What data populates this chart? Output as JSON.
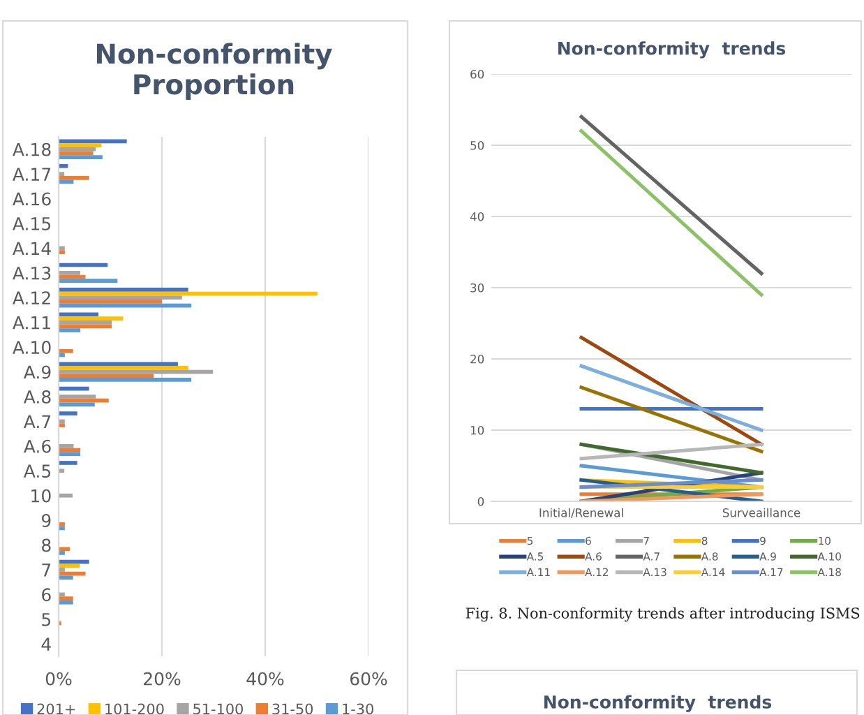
{
  "chart_data": [
    {
      "type": "bar",
      "orientation": "horizontal",
      "title": "Non-conformity\nProportion",
      "categories": [
        "A.18",
        "A.17",
        "A.16",
        "A.15",
        "A.14",
        "A.13",
        "A.12",
        "A.11",
        "A.10",
        "A.9",
        "A.8",
        "A.7",
        "A.6",
        "A.5",
        "10",
        "9",
        "8",
        "7",
        "6",
        "5",
        "4"
      ],
      "series": [
        {
          "name": "201+",
          "color": "#4472c4",
          "values": [
            13.2,
            1.8,
            0,
            0,
            0,
            9.5,
            25.1,
            7.7,
            0,
            23.1,
            5.9,
            3.6,
            0,
            3.6,
            0,
            0,
            0,
            5.9,
            0,
            0,
            0
          ]
        },
        {
          "name": "101-200",
          "color": "#ffc000",
          "values": [
            8.3,
            0,
            0,
            0,
            0,
            0,
            50.1,
            12.5,
            0,
            25.1,
            0,
            0,
            0,
            0,
            0,
            0,
            0,
            4.1,
            0,
            0,
            0
          ]
        },
        {
          "name": "51-100",
          "color": "#a5a5a5",
          "values": [
            7.2,
            1.1,
            0,
            0,
            1.2,
            4.2,
            23.9,
            10.3,
            0,
            29.9,
            7.2,
            1.2,
            2.9,
            1.1,
            2.7,
            0,
            0,
            1.2,
            1.2,
            0,
            0
          ]
        },
        {
          "name": "31-50",
          "color": "#ed7d31",
          "values": [
            6.7,
            5.9,
            0,
            0,
            1.2,
            5.2,
            20.0,
            10.3,
            2.8,
            18.4,
            9.7,
            1.2,
            4.2,
            0,
            0,
            1.2,
            2.2,
            5.2,
            2.8,
            0.5,
            0
          ]
        },
        {
          "name": "1-30",
          "color": "#5b9bd5",
          "values": [
            8.5,
            2.9,
            0,
            0,
            0,
            11.4,
            25.7,
            4.2,
            1.2,
            25.7,
            7.0,
            0,
            4.2,
            0,
            0,
            1.2,
            1.2,
            2.8,
            2.8,
            0,
            0
          ]
        }
      ],
      "xlim": [
        0,
        60
      ],
      "xticks": [
        {
          "value": 0,
          "label": "0%"
        },
        {
          "value": 20,
          "label": "20%"
        },
        {
          "value": 40,
          "label": "40%"
        },
        {
          "value": 60,
          "label": "60%"
        }
      ],
      "grid": "x",
      "legend": "bottom"
    },
    {
      "type": "line",
      "title": "Non-conformity  trends",
      "categories": [
        "Initial/Renewal",
        "Surveaillance"
      ],
      "series": [
        {
          "name": "5",
          "color": "#ed7d31",
          "values": [
            1,
            1
          ]
        },
        {
          "name": "6",
          "color": "#5b9bd5",
          "values": [
            5,
            2
          ]
        },
        {
          "name": "7",
          "color": "#a5a5a5",
          "values": [
            8,
            3
          ]
        },
        {
          "name": "8",
          "color": "#ffc000",
          "values": [
            3,
            2
          ]
        },
        {
          "name": "9",
          "color": "#4472c4",
          "values": [
            13,
            13
          ]
        },
        {
          "name": "10",
          "color": "#70ad47",
          "values": [
            0,
            2
          ]
        },
        {
          "name": "A.5",
          "color": "#264478",
          "values": [
            0,
            4
          ]
        },
        {
          "name": "A.6",
          "color": "#9e480e",
          "values": [
            23,
            8
          ]
        },
        {
          "name": "A.7",
          "color": "#636363",
          "values": [
            54,
            32
          ]
        },
        {
          "name": "A.8",
          "color": "#997300",
          "values": [
            16,
            7
          ]
        },
        {
          "name": "A.9",
          "color": "#255e91",
          "values": [
            3,
            0
          ]
        },
        {
          "name": "A.10",
          "color": "#43682b",
          "values": [
            8,
            4
          ]
        },
        {
          "name": "A.11",
          "color": "#7cafdd",
          "values": [
            19,
            10
          ]
        },
        {
          "name": "A.12",
          "color": "#f1975a",
          "values": [
            0,
            1
          ]
        },
        {
          "name": "A.13",
          "color": "#b7b7b7",
          "values": [
            6,
            8
          ]
        },
        {
          "name": "A.14",
          "color": "#ffcd33",
          "values": [
            2,
            2
          ]
        },
        {
          "name": "A.17",
          "color": "#698ed0",
          "values": [
            2,
            3
          ]
        },
        {
          "name": "A.18",
          "color": "#8cc168",
          "values": [
            52,
            29
          ]
        }
      ],
      "ylim": [
        0,
        60
      ],
      "yticks": [
        0,
        10,
        20,
        30,
        40,
        50,
        60
      ],
      "grid": "y",
      "legend": "bottom",
      "annotations": [
        "Fig. 8. Non-conformity trends after introducing ISMS"
      ]
    },
    {
      "type": "other",
      "title": "Non-conformity  trends"
    }
  ]
}
